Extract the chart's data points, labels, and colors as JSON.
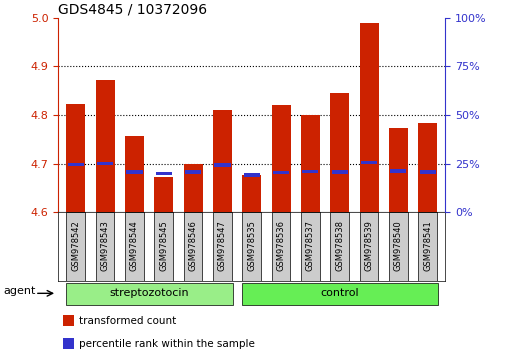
{
  "title": "GDS4845 / 10372096",
  "samples": [
    "GSM978542",
    "GSM978543",
    "GSM978544",
    "GSM978545",
    "GSM978546",
    "GSM978547",
    "GSM978535",
    "GSM978536",
    "GSM978537",
    "GSM978538",
    "GSM978539",
    "GSM978540",
    "GSM978541"
  ],
  "groups": [
    "streptozotocin",
    "streptozotocin",
    "streptozotocin",
    "streptozotocin",
    "streptozotocin",
    "streptozotocin",
    "control",
    "control",
    "control",
    "control",
    "control",
    "control",
    "control"
  ],
  "transformed_counts": [
    4.823,
    4.872,
    4.757,
    4.673,
    4.699,
    4.81,
    4.677,
    4.82,
    4.8,
    4.845,
    4.99,
    4.773,
    4.783
  ],
  "percentile_ranks": [
    4.698,
    4.7,
    4.683,
    4.68,
    4.683,
    4.697,
    4.677,
    4.682,
    4.684,
    4.683,
    4.702,
    4.685,
    4.683
  ],
  "bar_color": "#cc2200",
  "percentile_color": "#3333cc",
  "ylim_left": [
    4.6,
    5.0
  ],
  "ylim_right": [
    0,
    100
  ],
  "yticks_left": [
    4.6,
    4.7,
    4.8,
    4.9,
    5.0
  ],
  "yticks_right": [
    0,
    25,
    50,
    75,
    100
  ],
  "grid_lines": [
    4.7,
    4.8,
    4.9
  ],
  "bar_width": 0.65,
  "group_palette": {
    "streptozotocin": "#99ee88",
    "control": "#66ee55"
  },
  "agent_label": "agent",
  "legend_items": [
    {
      "label": "transformed count",
      "color": "#cc2200"
    },
    {
      "label": "percentile rank within the sample",
      "color": "#3333cc"
    }
  ],
  "xlabel_bg": "#cccccc",
  "title_fontsize": 10,
  "tick_fontsize": 8,
  "label_fontsize": 8
}
